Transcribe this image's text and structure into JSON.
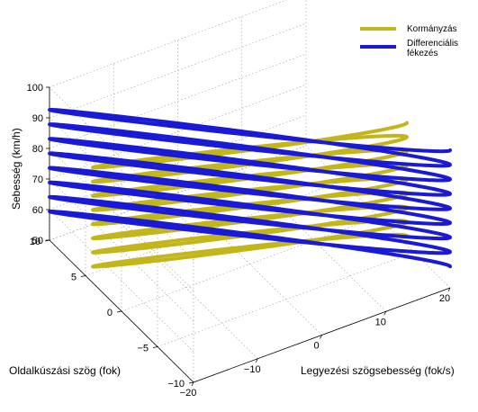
{
  "chart_data": {
    "type": "line3d",
    "title": "",
    "xlabel": "Legyezési szögsebesség (fok/s)",
    "ylabel": "Oldalkúszási szög (fok)",
    "zlabel": "Sebesség (km/h)",
    "xlim": [
      -20,
      20
    ],
    "ylim": [
      -10,
      10
    ],
    "zlim": [
      50,
      100
    ],
    "xticks": [
      "−20",
      "−10",
      "0",
      "10",
      "20"
    ],
    "yticks": [
      "−10",
      "−5",
      "0",
      "5",
      "10"
    ],
    "zticks": [
      "50",
      "60",
      "70",
      "80",
      "90",
      "100"
    ],
    "grid": true,
    "legend_position": "top-right",
    "series": [
      {
        "name": "Kormányzás",
        "color": "#c2b61a",
        "shape": "spiral",
        "x_amplitude": 20,
        "y_amplitude": 4,
        "z_start": 53,
        "z_end": 90,
        "turns": 8
      },
      {
        "name": "Differenciális fékezés",
        "color": "#1a1ad6",
        "shape": "spiral",
        "x_amplitude": 20,
        "y_amplitude": 10,
        "z_start": 57,
        "z_end": 95,
        "turns": 8
      }
    ]
  }
}
